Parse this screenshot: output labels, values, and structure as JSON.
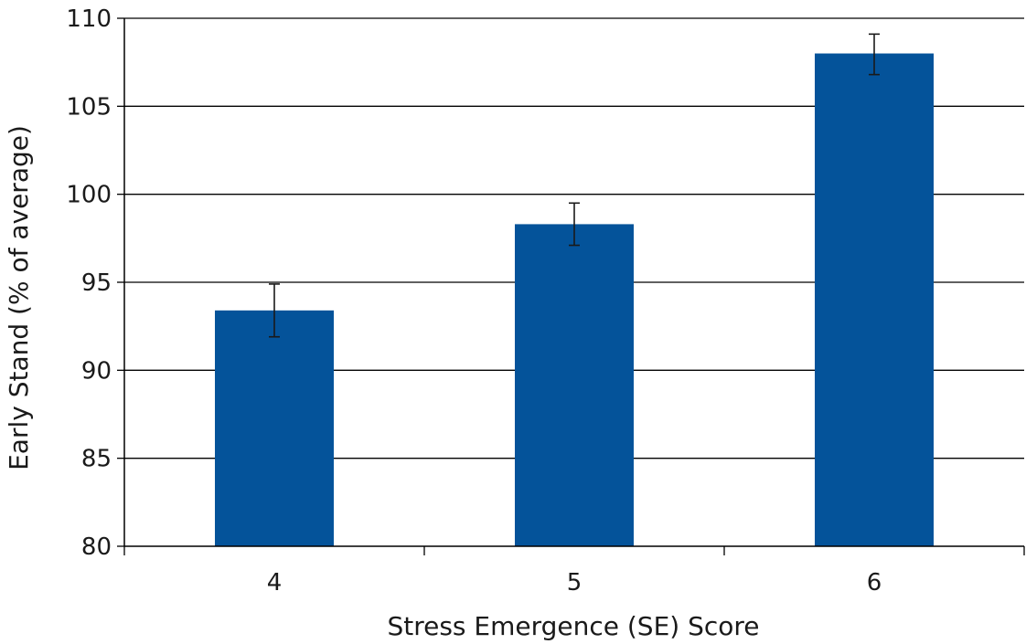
{
  "chart_data": {
    "type": "bar",
    "xlabel": "Stress Emergence (SE) Score",
    "ylabel": "Early Stand (% of average)",
    "categories": [
      "4",
      "5",
      "6"
    ],
    "values": [
      93.4,
      98.3,
      108.0
    ],
    "error_low": [
      91.9,
      97.1,
      106.8
    ],
    "error_high": [
      94.9,
      99.5,
      109.1
    ],
    "ylim": [
      80,
      110
    ],
    "yticks": [
      80,
      85,
      90,
      95,
      100,
      105,
      110
    ],
    "ytick_labels": [
      "80",
      "85",
      "90",
      "95",
      "100",
      "105",
      "110"
    ],
    "grid": true,
    "legend": "none",
    "colors": {
      "bar": "#04539a",
      "grid": "#000000",
      "error_bar": "#1a1a1a"
    }
  }
}
